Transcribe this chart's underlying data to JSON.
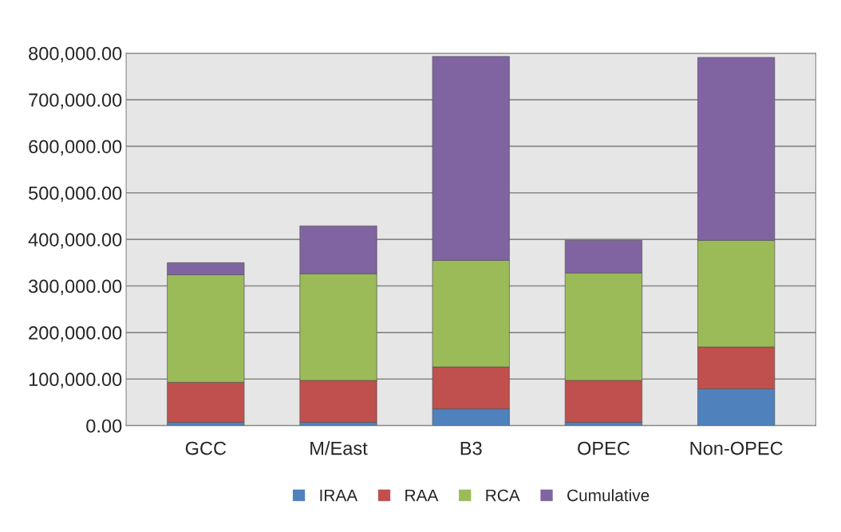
{
  "chart_data": {
    "type": "bar",
    "stacked": true,
    "categories": [
      "GCC",
      "M/East",
      "B3",
      "OPEC",
      "Non-OPEC"
    ],
    "series": [
      {
        "name": "IRAA",
        "color": "#4f81bd",
        "values": [
          7000,
          7000,
          36000,
          7000,
          79000
        ]
      },
      {
        "name": "RAA",
        "color": "#c0504d",
        "values": [
          86000,
          90000,
          90000,
          90000,
          90000
        ]
      },
      {
        "name": "RCA",
        "color": "#9bbb59",
        "values": [
          231000,
          229000,
          229000,
          231000,
          229000
        ]
      },
      {
        "name": "Cumulative",
        "color": "#8064a2",
        "values": [
          26000,
          103000,
          438000,
          70000,
          393000
        ]
      }
    ],
    "ylim": [
      0,
      800000
    ],
    "yticks": [
      {
        "value": 0,
        "label": "0.00"
      },
      {
        "value": 100000,
        "label": "100,000.00"
      },
      {
        "value": 200000,
        "label": "200,000.00"
      },
      {
        "value": 300000,
        "label": "300,000.00"
      },
      {
        "value": 400000,
        "label": "400,000.00"
      },
      {
        "value": 500000,
        "label": "500,000.00"
      },
      {
        "value": 600000,
        "label": "600,000.00"
      },
      {
        "value": 700000,
        "label": "700,000.00"
      },
      {
        "value": 800000,
        "label": "800,000.00"
      }
    ],
    "grid": "y",
    "legend": "bottom"
  }
}
